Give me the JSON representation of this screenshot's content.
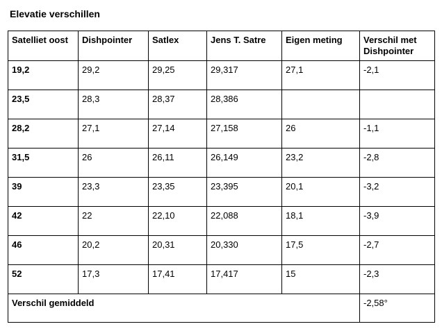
{
  "document": {
    "title": "Elevatie verschillen"
  },
  "table": {
    "headers": [
      "Satelliet oost",
      "Dishpointer",
      "Satlex",
      "Jens T. Satre",
      "Eigen meting",
      "Verschil met Dishpointer"
    ],
    "rows": [
      {
        "satellite": "19,2",
        "dishpointer": "29,2",
        "satlex": "29,25",
        "jens": "29,317",
        "eigen": "27,1",
        "verschil": "-2,1"
      },
      {
        "satellite": "23,5",
        "dishpointer": "28,3",
        "satlex": "28,37",
        "jens": "28,386",
        "eigen": "",
        "verschil": ""
      },
      {
        "satellite": "28,2",
        "dishpointer": "27,1",
        "satlex": "27,14",
        "jens": "27,158",
        "eigen": "26",
        "verschil": "-1,1"
      },
      {
        "satellite": "31,5",
        "dishpointer": "26",
        "satlex": "26,11",
        "jens": "26,149",
        "eigen": "23,2",
        "verschil": "-2,8"
      },
      {
        "satellite": "39",
        "dishpointer": "23,3",
        "satlex": "23,35",
        "jens": "23,395",
        "eigen": "20,1",
        "verschil": "-3,2"
      },
      {
        "satellite": "42",
        "dishpointer": "22",
        "satlex": "22,10",
        "jens": "22,088",
        "eigen": "18,1",
        "verschil": "-3,9"
      },
      {
        "satellite": "46",
        "dishpointer": "20,2",
        "satlex": "20,31",
        "jens": "20,330",
        "eigen": "17,5",
        "verschil": "-2,7"
      },
      {
        "satellite": "52",
        "dishpointer": "17,3",
        "satlex": "17,41",
        "jens": "17,417",
        "eigen": "15",
        "verschil": "-2,3"
      }
    ],
    "average": {
      "label": "Verschil gemiddeld",
      "value": "-2,58°"
    }
  }
}
